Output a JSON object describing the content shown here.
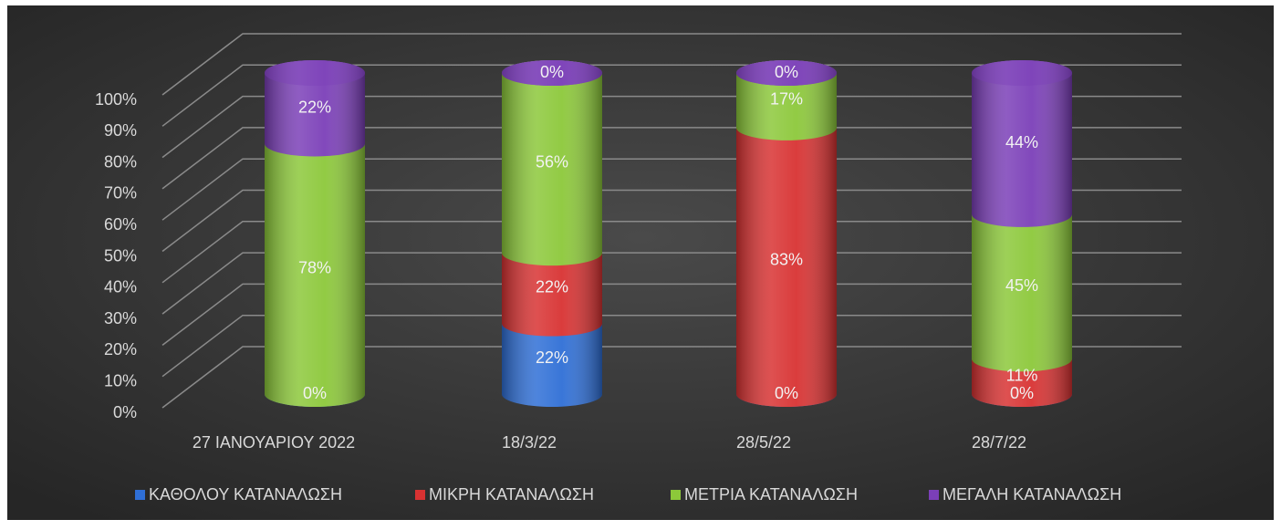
{
  "chart_data": {
    "type": "stacked_cylinder",
    "categories": [
      "27 ΙΑΝΟΥΑΡΙΟΥ 2022",
      "18/3/22",
      "28/5/22",
      "28/7/22"
    ],
    "series": [
      {
        "name": "ΚΑΘΟΛΟΥ ΚΑΤΑΝΑΛΩΣΗ",
        "color": "#2f6fd6",
        "values": [
          0,
          22,
          0,
          0
        ],
        "value_labels": [
          "0%",
          "22%",
          "0%",
          "0%"
        ]
      },
      {
        "name": "ΜΙΚΡΗ ΚΑΤΑΝΑΛΩΣΗ",
        "color": "#d83232",
        "values": [
          null,
          22,
          83,
          11
        ],
        "value_labels": [
          null,
          "22%",
          "83%",
          "11%"
        ]
      },
      {
        "name": "ΜΕΤΡΙΑ ΚΑΤΑΝΑΛΩΣΗ",
        "color": "#8cc83a",
        "values": [
          78,
          56,
          17,
          45
        ],
        "value_labels": [
          "78%",
          "56%",
          "17%",
          "45%"
        ]
      },
      {
        "name": "ΜΕΓΑΛΗ ΚΑΤΑΝΑΛΩΣΗ",
        "color": "#7b3fb8",
        "values": [
          22,
          0,
          0,
          44
        ],
        "value_labels": [
          "22%",
          "0%",
          "0%",
          "44%"
        ]
      }
    ],
    "ylim": [
      0,
      100
    ],
    "yticks": [
      {
        "value": 0,
        "label": "0%"
      },
      {
        "value": 10,
        "label": "10%"
      },
      {
        "value": 20,
        "label": "20%"
      },
      {
        "value": 30,
        "label": "30%"
      },
      {
        "value": 40,
        "label": "40%"
      },
      {
        "value": 50,
        "label": "50%"
      },
      {
        "value": 60,
        "label": "60%"
      },
      {
        "value": 70,
        "label": "70%"
      },
      {
        "value": 80,
        "label": "80%"
      },
      {
        "value": 90,
        "label": "90%"
      },
      {
        "value": 100,
        "label": "100%"
      }
    ],
    "grid": true,
    "legend": "bottom"
  }
}
